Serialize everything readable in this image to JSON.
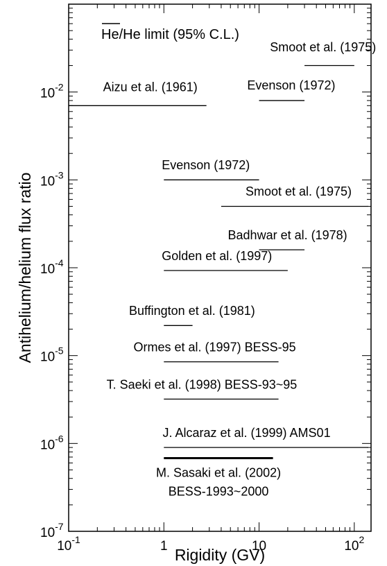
{
  "chart_data": {
    "type": "line",
    "title": "",
    "xlabel": "Rigidity (GV)",
    "ylabel": "Antihelium/helium flux ratio",
    "x_scale": "log",
    "y_scale": "log",
    "xlim": [
      0.1,
      150
    ],
    "ylim": [
      1e-07,
      0.1
    ],
    "grid": false,
    "annotations": {
      "header_over": "He",
      "header_rest": "/He limit (95% C.L.)"
    },
    "x_ticks": [
      {
        "value": 0.1,
        "base": "10",
        "exp": "-1"
      },
      {
        "value": 1,
        "base": "1",
        "exp": ""
      },
      {
        "value": 10,
        "base": "10",
        "exp": ""
      },
      {
        "value": 100,
        "base": "10",
        "exp": "2"
      }
    ],
    "y_ticks": [
      {
        "value": 0.01,
        "base": "10",
        "exp": "-2"
      },
      {
        "value": 0.001,
        "base": "10",
        "exp": "-3"
      },
      {
        "value": 0.0001,
        "base": "10",
        "exp": "-4"
      },
      {
        "value": 1e-05,
        "base": "10",
        "exp": "-5"
      },
      {
        "value": 1e-06,
        "base": "10",
        "exp": "-6"
      },
      {
        "value": 1e-07,
        "base": "10",
        "exp": "-7"
      }
    ],
    "series": [
      {
        "label": "Aizu et al. (1961)",
        "x": [
          0.1,
          2.8
        ],
        "y": [
          0.007,
          0.007
        ],
        "label_at": [
          0.23,
          0.0102
        ],
        "anchor": "start",
        "thick": false
      },
      {
        "label": "Smoot et al. (1975)",
        "x": [
          30,
          100
        ],
        "y": [
          0.02,
          0.02
        ],
        "label_at": [
          13,
          0.029
        ],
        "anchor": "start",
        "thick": false
      },
      {
        "label": "Evenson (1972)",
        "x": [
          10,
          30
        ],
        "y": [
          0.008,
          0.008
        ],
        "label_at": [
          7.5,
          0.0107
        ],
        "anchor": "start",
        "thick": false
      },
      {
        "label": "Evenson (1972)",
        "x": [
          1,
          10
        ],
        "y": [
          0.001,
          0.001
        ],
        "label_at": [
          0.95,
          0.00132
        ],
        "anchor": "start",
        "thick": false
      },
      {
        "label": "Smoot et al. (1975)",
        "x": [
          4,
          140
        ],
        "y": [
          0.0005,
          0.0005
        ],
        "label_at": [
          7.2,
          0.00066
        ],
        "anchor": "start",
        "thick": false
      },
      {
        "label": "Badhwar et al. (1978)",
        "x": [
          10,
          30
        ],
        "y": [
          0.00016,
          0.00016
        ],
        "label_at": [
          4.7,
          0.00021
        ],
        "anchor": "start",
        "thick": false
      },
      {
        "label": "Golden et al. (1997)",
        "x": [
          1,
          20
        ],
        "y": [
          9.3e-05,
          9.3e-05
        ],
        "label_at": [
          0.95,
          0.000122
        ],
        "anchor": "start",
        "thick": false
      },
      {
        "label": "Buffington et al. (1981)",
        "x": [
          1,
          2
        ],
        "y": [
          2.2e-05,
          2.2e-05
        ],
        "label_at": [
          0.43,
          2.9e-05
        ],
        "anchor": "start",
        "thick": false
      },
      {
        "label": "Ormes et al. (1997) BESS-95",
        "x": [
          1,
          16
        ],
        "y": [
          8.5e-06,
          8.5e-06
        ],
        "label_at": [
          0.48,
          1.12e-05
        ],
        "anchor": "start",
        "thick": false
      },
      {
        "label": "T. Saeki et al. (1998) BESS-93~95",
        "x": [
          1,
          16
        ],
        "y": [
          3.2e-06,
          3.2e-06
        ],
        "label_at": [
          0.25,
          4.2e-06
        ],
        "anchor": "start",
        "thick": false
      },
      {
        "label": "J. Alcaraz et al. (1999) AMS01",
        "x": [
          1,
          140
        ],
        "y": [
          9e-07,
          9e-07
        ],
        "label_at": [
          0.97,
          1.18e-06
        ],
        "anchor": "start",
        "thick": false
      },
      {
        "label": "M. Sasaki et al. (2002)",
        "x": [
          1,
          14
        ],
        "y": [
          6.8e-07,
          6.8e-07
        ],
        "label_at": [
          3.75,
          4.15e-07
        ],
        "anchor": "middle",
        "thick": true
      }
    ],
    "extra_label": {
      "text": "BESS-1993~2000",
      "at": [
        3.75,
        2.55e-07
      ],
      "anchor": "middle"
    }
  }
}
